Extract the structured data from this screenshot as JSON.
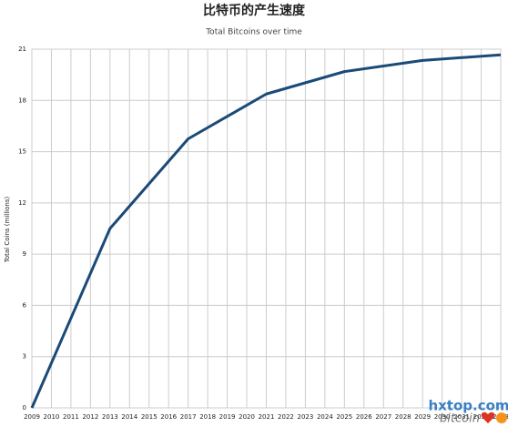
{
  "chart_data": {
    "type": "line",
    "title": "比特币的产生速度",
    "subtitle": "Total Bitcoins over time",
    "y_label": "Total Coins (millions)",
    "x": [
      2009,
      2013,
      2017,
      2021,
      2025,
      2029,
      2033
    ],
    "series": [
      {
        "name": "Total Bitcoins",
        "color": "#1a4a78",
        "values": [
          0,
          10.5,
          15.75,
          18.375,
          19.6875,
          20.34,
          20.67
        ]
      }
    ],
    "xlim": [
      2009,
      2033
    ],
    "xticks": [
      2009,
      2010,
      2011,
      2012,
      2013,
      2014,
      2015,
      2016,
      2017,
      2018,
      2019,
      2020,
      2021,
      2022,
      2023,
      2024,
      2025,
      2026,
      2027,
      2028,
      2029,
      2030,
      2031,
      2032,
      2033
    ],
    "ylim": [
      0,
      21
    ],
    "yticks": [
      0,
      3,
      6,
      9,
      12,
      15,
      18,
      21
    ],
    "grid": true,
    "watermark": {
      "site": "hxtop.com",
      "brand": "bitcoin"
    }
  }
}
